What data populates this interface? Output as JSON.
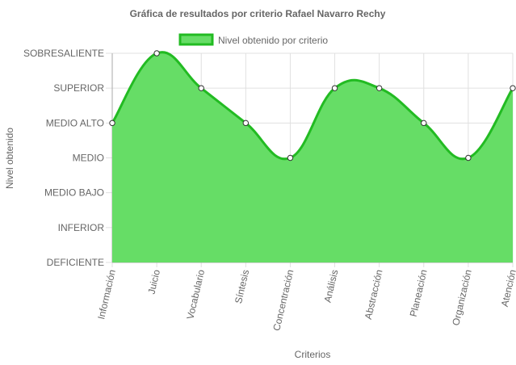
{
  "chart_data": {
    "type": "area",
    "title": "Gráfica de resultados por criterio Rafael Navarro Rechy",
    "xlabel": "Criterios",
    "ylabel": "Nivel obtenido",
    "legend": {
      "position": "top",
      "entries": [
        "Nivel obtenido por criterio"
      ]
    },
    "y_levels": [
      "DEFICIENTE",
      "INFERIOR",
      "MEDIO BAJO",
      "MEDIO",
      "MEDIO ALTO",
      "SUPERIOR",
      "SOBRESALIENTE"
    ],
    "categories": [
      "Información",
      "Juicio",
      "Vocabulario",
      "Síntesis",
      "Concentración",
      "Análisis",
      "Abstracción",
      "Planeación",
      "Organización",
      "Atención"
    ],
    "series": [
      {
        "name": "Nivel obtenido por criterio",
        "values": [
          "MEDIO ALTO",
          "SOBRESALIENTE",
          "SUPERIOR",
          "MEDIO ALTO",
          "MEDIO",
          "SUPERIOR",
          "SUPERIOR",
          "MEDIO ALTO",
          "MEDIO",
          "SUPERIOR"
        ]
      }
    ],
    "grid": true,
    "colors": {
      "fill": "#66dd66",
      "line": "#22bb22",
      "point_fill": "#ffffff",
      "point_stroke": "#333333",
      "grid": "#e0e0e0",
      "axis": "#aaaaaa"
    }
  }
}
